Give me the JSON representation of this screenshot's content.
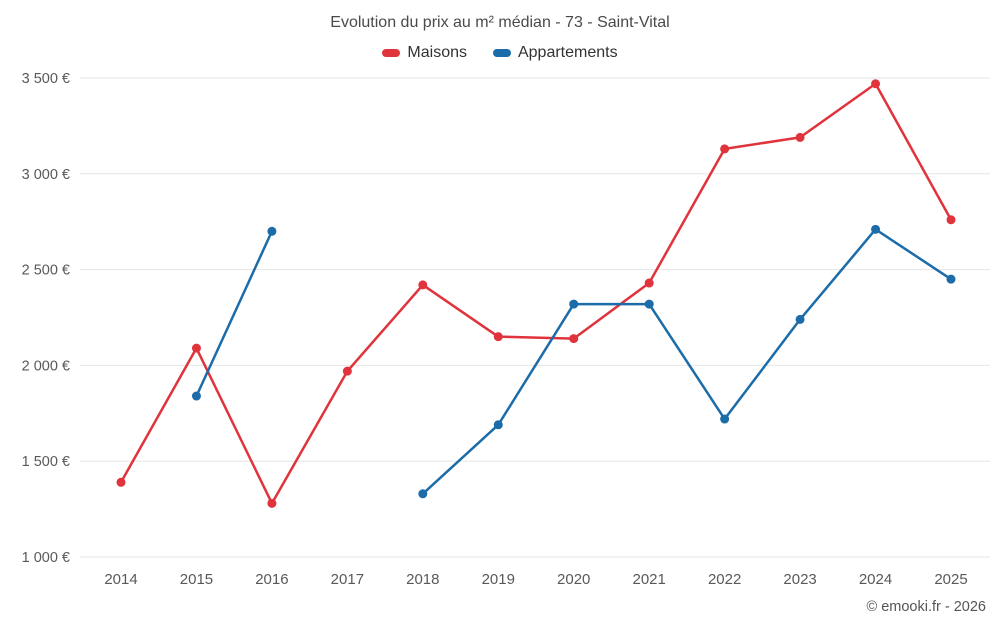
{
  "chart_data": {
    "type": "line",
    "title": "Evolution du prix au m² médian - 73 - Saint-Vital",
    "x": [
      "2014",
      "2015",
      "2016",
      "2017",
      "2018",
      "2019",
      "2020",
      "2021",
      "2022",
      "2023",
      "2024",
      "2025"
    ],
    "series": [
      {
        "name": "Maisons",
        "color": "#e0333c",
        "values": [
          1390,
          2090,
          1280,
          1970,
          2420,
          2150,
          2140,
          2430,
          3130,
          3190,
          3470,
          2760
        ]
      },
      {
        "name": "Appartements",
        "color": "#1b6ca8",
        "values": [
          null,
          1840,
          2700,
          null,
          1330,
          1690,
          2320,
          2320,
          1720,
          2240,
          2710,
          2450
        ]
      }
    ],
    "ylim": [
      1000,
      3500
    ],
    "y_ticks": [
      {
        "value": 1000,
        "label": "1 000 €"
      },
      {
        "value": 1500,
        "label": "1 500 €"
      },
      {
        "value": 2000,
        "label": "2 000 €"
      },
      {
        "value": 2500,
        "label": "2 500 €"
      },
      {
        "value": 3000,
        "label": "3 000 €"
      },
      {
        "value": 3500,
        "label": "3 500 €"
      }
    ],
    "grid": true,
    "legend_position": "top",
    "gridline_color": "#e6e6e6"
  },
  "footer": {
    "credit": "© emooki.fr - 2026"
  }
}
